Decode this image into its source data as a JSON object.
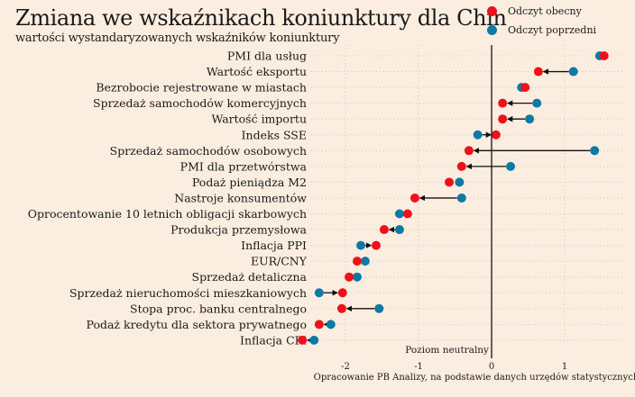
{
  "chart_data": {
    "type": "dumbbell",
    "title": "Zmiana we wskaźnikach koniunktury dla Chin",
    "subtitle": "wartości wystandaryzowanych wskaźników koniunktury",
    "legend": {
      "position": "top-right",
      "entries": [
        {
          "label": "Odczyt obecny",
          "color": "#f0101a"
        },
        {
          "label": "Odczyt poprzedni",
          "color": "#0e7aa3"
        }
      ]
    },
    "categories": [
      "PMI dla usług",
      "Wartość eksportu",
      "Bezrobocie rejestrowane w miastach",
      "Sprzedaż samochodów komercyjnych",
      "Wartość importu",
      "Indeks SSE",
      "Sprzedaż samochodów osobowych",
      "PMI dla przetwórstwa",
      "Podaż pieniądza M2",
      "Nastroje konsumentów",
      "Oprocentowanie 10 letnich obligacji skarbowych",
      "Produkcja przemysłowa",
      "Inflacja PPI",
      "EUR/CNY",
      "Sprzedaż detaliczna",
      "Sprzedaż nieruchomości mieszkaniowych",
      "Stopa proc. banku centralnego",
      "Podaż kredytu dla sektora prywatnego",
      "Inflacja CPI"
    ],
    "series": [
      {
        "name": "Odczyt obecny",
        "values": [
          1.54,
          0.64,
          0.46,
          0.15,
          0.15,
          0.06,
          -0.31,
          -0.41,
          -0.58,
          -1.05,
          -1.15,
          -1.47,
          -1.58,
          -1.84,
          -1.95,
          -2.04,
          -2.05,
          -2.36,
          -2.59
        ]
      },
      {
        "name": "Odczyt poprzedni",
        "values": [
          1.48,
          1.12,
          0.41,
          0.62,
          0.52,
          -0.19,
          1.41,
          0.26,
          -0.44,
          -0.41,
          -1.26,
          -1.26,
          -1.79,
          -1.73,
          -1.84,
          -2.36,
          -1.54,
          -2.2,
          -2.43
        ]
      }
    ],
    "xlim": [
      -2.6,
      1.6
    ],
    "xticks": [
      "-2",
      "-1",
      "0",
      "1"
    ],
    "xtick_values": [
      -2,
      -1,
      0,
      1
    ],
    "reference_line": {
      "value": 0,
      "label": "Poziom neutralny"
    },
    "arrow_threshold": 0.15,
    "grid": true,
    "source": "Opracowanie PB Analizy, na podstawie danych urzędów statystycznych"
  }
}
